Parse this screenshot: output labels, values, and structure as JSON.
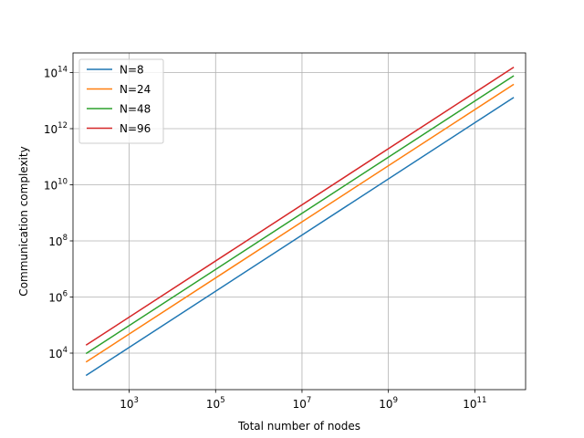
{
  "chart_data": {
    "type": "line",
    "xlabel": "Total number of nodes",
    "ylabel": "Communication complexity",
    "xscale": "log",
    "yscale": "log",
    "xlim": [
      50,
      1500000000000.0
    ],
    "ylim": [
      500,
      500000000000000.0
    ],
    "x_ticks": [
      {
        "base": "10",
        "exp": "3",
        "value": 1000.0
      },
      {
        "base": "10",
        "exp": "5",
        "value": 100000.0
      },
      {
        "base": "10",
        "exp": "7",
        "value": 10000000.0
      },
      {
        "base": "10",
        "exp": "9",
        "value": 1000000000.0
      },
      {
        "base": "10",
        "exp": "11",
        "value": 100000000000.0
      }
    ],
    "y_ticks": [
      {
        "base": "10",
        "exp": "4",
        "value": 10000.0
      },
      {
        "base": "10",
        "exp": "6",
        "value": 1000000.0
      },
      {
        "base": "10",
        "exp": "8",
        "value": 100000000.0
      },
      {
        "base": "10",
        "exp": "10",
        "value": 10000000000.0
      },
      {
        "base": "10",
        "exp": "12",
        "value": 1000000000000.0
      },
      {
        "base": "10",
        "exp": "14",
        "value": 100000000000000.0
      }
    ],
    "grid": true,
    "legend_position": "top-left",
    "series": [
      {
        "name": "N=8",
        "color": "#1f77b4",
        "x": [
          100,
          800000000000.0
        ],
        "y": [
          1600,
          13000000000000.0
        ]
      },
      {
        "name": "N=24",
        "color": "#ff7f0e",
        "x": [
          100,
          800000000000.0
        ],
        "y": [
          4800,
          38000000000000.0
        ]
      },
      {
        "name": "N=48",
        "color": "#2ca02c",
        "x": [
          100,
          800000000000.0
        ],
        "y": [
          9600,
          77000000000000.0
        ]
      },
      {
        "name": "N=96",
        "color": "#d62728",
        "x": [
          100,
          800000000000.0
        ],
        "y": [
          19200,
          155000000000000.0
        ]
      }
    ]
  }
}
